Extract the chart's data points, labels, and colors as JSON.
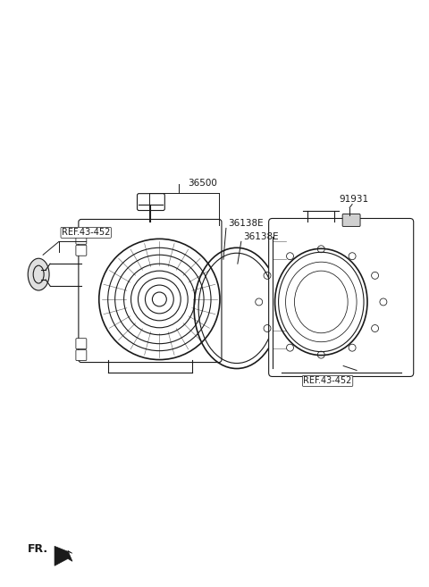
{
  "bg_color": "#ffffff",
  "line_color": "#1a1a1a",
  "label_color": "#1a1a1a",
  "labels": {
    "ref_452_left": "REF.43-452",
    "part_36500": "36500",
    "part_36138E_upper": "36138E",
    "part_36138E_lower": "36138E",
    "part_91931": "91931",
    "ref_452_right": "REF.43-452"
  },
  "fr_label": "FR.",
  "figsize": [
    4.8,
    6.57
  ],
  "dpi": 100
}
